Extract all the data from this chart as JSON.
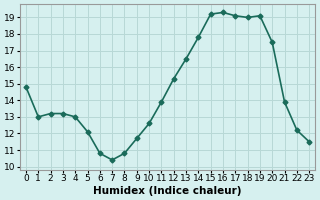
{
  "x": [
    0,
    1,
    2,
    3,
    4,
    5,
    6,
    7,
    8,
    9,
    10,
    11,
    12,
    13,
    14,
    15,
    16,
    17,
    18,
    19,
    20,
    21,
    22,
    23
  ],
  "y": [
    14.8,
    13.0,
    13.2,
    13.2,
    13.0,
    12.1,
    10.8,
    10.4,
    10.8,
    11.7,
    12.6,
    13.9,
    15.3,
    16.5,
    17.8,
    19.2,
    19.3,
    19.1,
    19.0,
    19.1,
    17.5,
    13.9,
    12.2,
    11.5
  ],
  "line_color": "#1a6b5a",
  "marker": "D",
  "marker_size": 2.5,
  "linewidth": 1.2,
  "xlabel": "Humidex (Indice chaleur)",
  "xlim": [
    -0.5,
    23.5
  ],
  "ylim": [
    9.8,
    19.8
  ],
  "yticks": [
    10,
    11,
    12,
    13,
    14,
    15,
    16,
    17,
    18,
    19
  ],
  "xticks": [
    0,
    1,
    2,
    3,
    4,
    5,
    6,
    7,
    8,
    9,
    10,
    11,
    12,
    13,
    14,
    15,
    16,
    17,
    18,
    19,
    20,
    21,
    22,
    23
  ],
  "background_color": "#d6f0ef",
  "grid_color": "#b8d8d6",
  "tick_label_fontsize": 6.5,
  "xlabel_fontsize": 7.5
}
